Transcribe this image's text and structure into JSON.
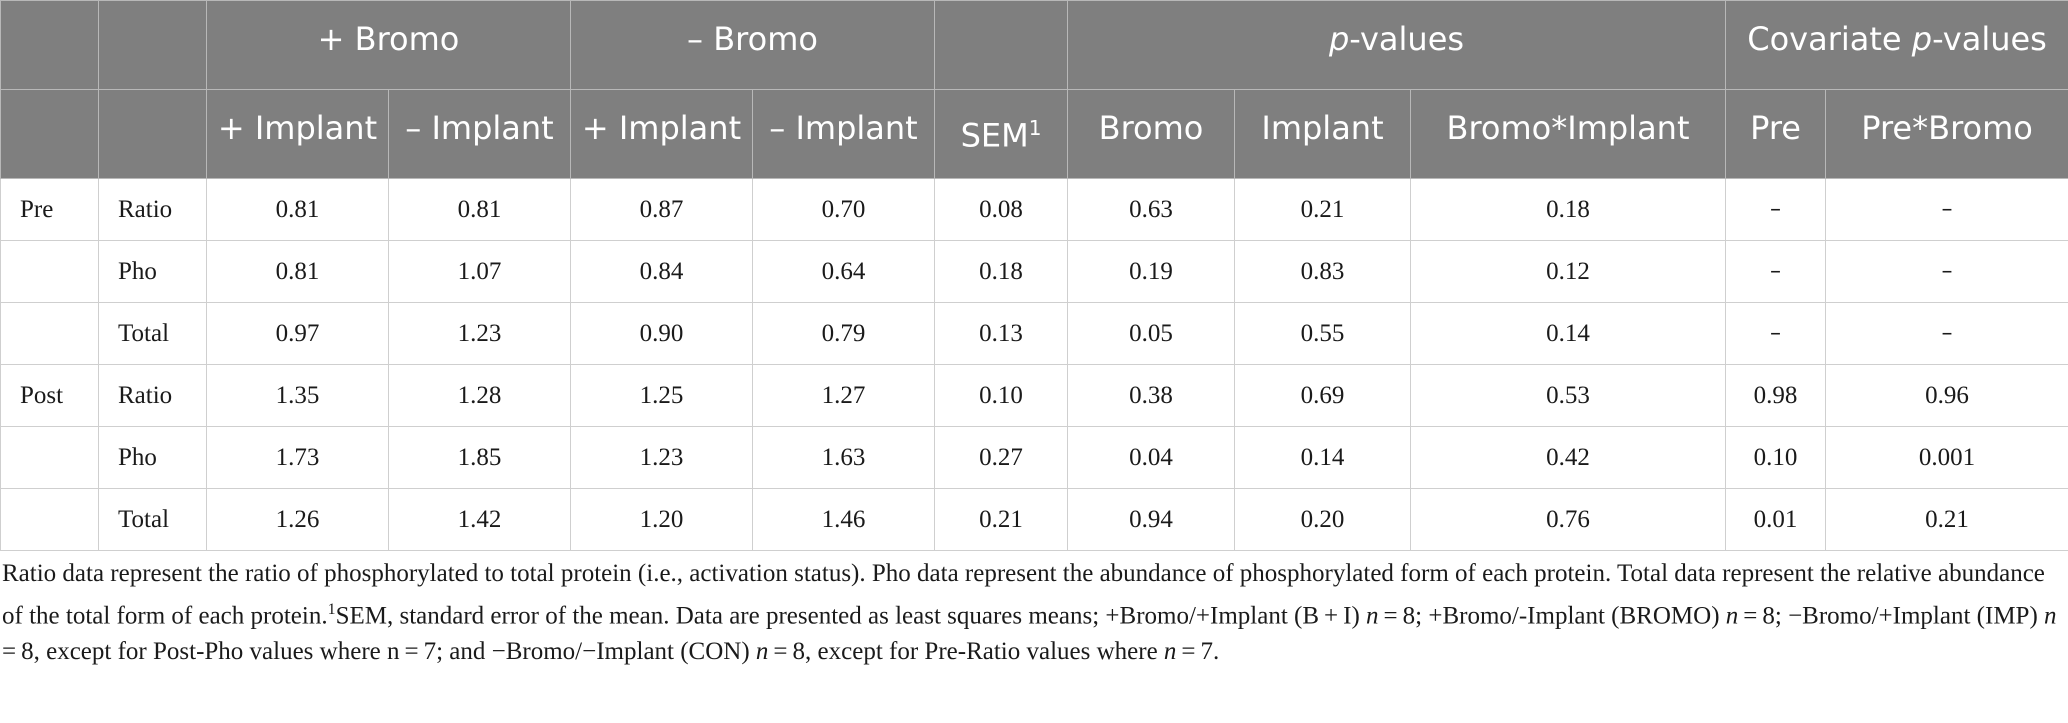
{
  "header": {
    "bromo_pos": "+ Bromo",
    "bromo_neg": "– Bromo",
    "pvalues_italic": "p",
    "pvalues_rest": "-values",
    "covariate_pre": "Covariate ",
    "covariate_italic": "p",
    "covariate_rest": "-values",
    "sub": {
      "bp_imp_pos": "+ Implant",
      "bp_imp_neg": "– Implant",
      "bn_imp_pos": "+ Implant",
      "bn_imp_neg": "– Implant",
      "sem": "SEM",
      "sem_sup": "1",
      "bromo": "Bromo",
      "implant": "Implant",
      "bromo_implant": "Bromo*Implant",
      "pre": "Pre",
      "pre_bromo": "Pre*Bromo"
    }
  },
  "rows": [
    {
      "group": "Pre",
      "label": "Ratio",
      "c1": "0.81",
      "c2": "0.81",
      "c3": "0.87",
      "c4": "0.70",
      "sem": "0.08",
      "p_bromo": "0.63",
      "p_implant": "0.21",
      "p_bi": "0.18",
      "cov_pre": "–",
      "cov_pb": "–"
    },
    {
      "group": "",
      "label": "Pho",
      "c1": "0.81",
      "c2": "1.07",
      "c3": "0.84",
      "c4": "0.64",
      "sem": "0.18",
      "p_bromo": "0.19",
      "p_implant": "0.83",
      "p_bi": "0.12",
      "cov_pre": "–",
      "cov_pb": "–"
    },
    {
      "group": "",
      "label": "Total",
      "c1": "0.97",
      "c2": "1.23",
      "c3": "0.90",
      "c4": "0.79",
      "sem": "0.13",
      "p_bromo": "0.05",
      "p_implant": "0.55",
      "p_bi": "0.14",
      "cov_pre": "–",
      "cov_pb": "–"
    },
    {
      "group": "Post",
      "label": "Ratio",
      "c1": "1.35",
      "c2": "1.28",
      "c3": "1.25",
      "c4": "1.27",
      "sem": "0.10",
      "p_bromo": "0.38",
      "p_implant": "0.69",
      "p_bi": "0.53",
      "cov_pre": "0.98",
      "cov_pb": "0.96"
    },
    {
      "group": "",
      "label": "Pho",
      "c1": "1.73",
      "c2": "1.85",
      "c3": "1.23",
      "c4": "1.63",
      "sem": "0.27",
      "p_bromo": "0.04",
      "p_implant": "0.14",
      "p_bi": "0.42",
      "cov_pre": "0.10",
      "cov_pb": "0.001"
    },
    {
      "group": "",
      "label": "Total",
      "c1": "1.26",
      "c2": "1.42",
      "c3": "1.20",
      "c4": "1.46",
      "sem": "0.21",
      "p_bromo": "0.94",
      "p_implant": "0.20",
      "p_bi": "0.76",
      "cov_pre": "0.01",
      "cov_pb": "0.21"
    }
  ],
  "footnote": {
    "s1": "Ratio data represent the ratio of phosphorylated to total protein (i.e., activation status). Pho data represent the abundance of phosphorylated form of each protein. Total data represent the relative abundance of the total form of each protein.",
    "sup": "1",
    "s2": "SEM, standard error of the mean. Data are presented as least squares means; +Bromo/+Implant (B + I) ",
    "n": "n",
    "s3": " = 8; +Bromo/-Implant (BROMO) ",
    "s4": " = 8; −Bromo/+Implant (IMP) ",
    "s5": " = 8, except for Post-Pho values where n = 7; and −Bromo/−Implant (CON) ",
    "s6": " = 8, except for Pre-Ratio values where ",
    "s7": " = 7."
  }
}
